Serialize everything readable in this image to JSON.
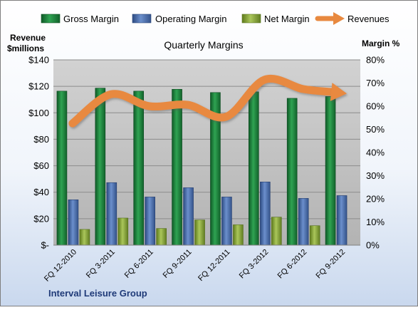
{
  "chart_data": {
    "type": "bar",
    "title": "Quarterly Margins",
    "categories": [
      "FQ 12-2010",
      "FQ 3-2011",
      "FQ 6-2011",
      "FQ 9-2011",
      "FQ 12-2011",
      "FQ 3-2012",
      "FQ 6-2012",
      "FQ 9-2012"
    ],
    "left_axis": {
      "label_line1": "Revenue",
      "label_line2": "$millions",
      "ylim": [
        0,
        140
      ],
      "ticks": [
        "$-",
        "$20",
        "$40",
        "$60",
        "$80",
        "$100",
        "$120",
        "$140"
      ]
    },
    "right_axis": {
      "label": "Margin %",
      "ylim": [
        0,
        80
      ],
      "ticks": [
        "0%",
        "10%",
        "20%",
        "30%",
        "40%",
        "50%",
        "60%",
        "70%",
        "80%"
      ]
    },
    "series": [
      {
        "name": "Gross Margin",
        "type": "bar",
        "axis": "right",
        "color": "#1e7a3c",
        "values": [
          66.5,
          67.8,
          66.5,
          67.3,
          65.9,
          66.2,
          63.4,
          64.2
        ]
      },
      {
        "name": "Operating Margin",
        "type": "bar",
        "axis": "right",
        "color": "#4a6fae",
        "values": [
          19.6,
          27.0,
          20.8,
          24.8,
          20.8,
          27.3,
          20.2,
          21.4
        ]
      },
      {
        "name": "Net Margin",
        "type": "bar",
        "axis": "right",
        "color": "#8aa63c",
        "values": [
          6.8,
          11.7,
          7.2,
          10.9,
          8.8,
          12.1,
          8.4,
          null
        ]
      },
      {
        "name": "Revenues",
        "type": "line",
        "axis": "left",
        "color": "#e8893f",
        "values": [
          92,
          114,
          105,
          106,
          97,
          125,
          118,
          115
        ]
      }
    ],
    "grid": true,
    "legend_position": "top",
    "footer": "Interval Leisure Group"
  }
}
